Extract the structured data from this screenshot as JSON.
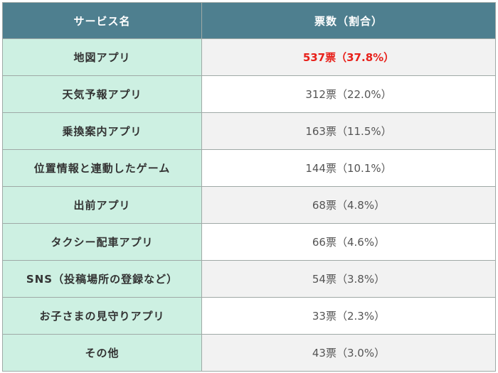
{
  "chart_data": {
    "type": "table",
    "columns": [
      "サービス名",
      "票数（割合）"
    ],
    "highlight_color": "#e8201a",
    "header_color": "#4e7f8f",
    "name_cell_color": "#cdf0e2",
    "rows": [
      {
        "name": "地図アプリ",
        "votes": 537,
        "percent": 37.8,
        "display": "537票（37.8%）",
        "highlight": true
      },
      {
        "name": "天気予報アプリ",
        "votes": 312,
        "percent": 22.0,
        "display": "312票（22.0%）",
        "highlight": false
      },
      {
        "name": "乗換案内アプリ",
        "votes": 163,
        "percent": 11.5,
        "display": "163票（11.5%）",
        "highlight": false
      },
      {
        "name": "位置情報と連動したゲーム",
        "votes": 144,
        "percent": 10.1,
        "display": "144票（10.1%）",
        "highlight": false
      },
      {
        "name": "出前アプリ",
        "votes": 68,
        "percent": 4.8,
        "display": "68票（4.8%）",
        "highlight": false
      },
      {
        "name": "タクシー配車アプリ",
        "votes": 66,
        "percent": 4.6,
        "display": "66票（4.6%）",
        "highlight": false
      },
      {
        "name": "SNS（投稿場所の登録など）",
        "votes": 54,
        "percent": 3.8,
        "display": "54票（3.8%）",
        "highlight": false
      },
      {
        "name": "お子さまの見守りアプリ",
        "votes": 33,
        "percent": 2.3,
        "display": "33票（2.3%）",
        "highlight": false
      },
      {
        "name": "その他",
        "votes": 43,
        "percent": 3.0,
        "display": "43票（3.0%）",
        "highlight": false
      }
    ]
  }
}
